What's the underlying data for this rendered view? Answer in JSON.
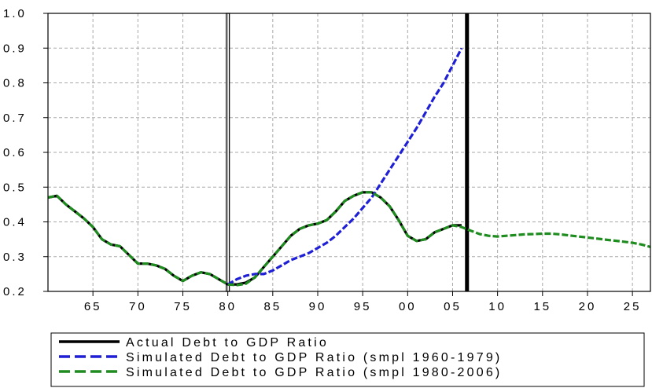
{
  "chart_data": {
    "type": "line",
    "title": "",
    "xlabel": "",
    "ylabel": "",
    "xlim": [
      1960,
      2027
    ],
    "ylim": [
      0.2,
      1.0
    ],
    "grid": true,
    "legend_position": "bottom",
    "x_tick_labels": [
      "65",
      "70",
      "75",
      "80",
      "85",
      "90",
      "95",
      "00",
      "05",
      "10",
      "15",
      "20",
      "25"
    ],
    "x_tick_values": [
      1965,
      1970,
      1975,
      1980,
      1985,
      1990,
      1995,
      2000,
      2005,
      2010,
      2015,
      2020,
      2025
    ],
    "y_tick_labels": [
      "0.2",
      "0.3",
      "0.4",
      "0.5",
      "0.6",
      "0.7",
      "0.8",
      "0.9",
      "1.0"
    ],
    "y_tick_values": [
      0.2,
      0.3,
      0.4,
      0.5,
      0.6,
      0.7,
      0.8,
      0.9,
      1.0
    ],
    "vertical_markers": [
      1980,
      2006.6
    ],
    "series": [
      {
        "name": "Actual Debt to GDP Ratio",
        "color": "#000000",
        "style": "solid",
        "x": [
          1960,
          1961,
          1962,
          1963,
          1964,
          1965,
          1966,
          1967,
          1968,
          1969,
          1970,
          1971,
          1972,
          1973,
          1974,
          1975,
          1976,
          1977,
          1978,
          1979,
          1980,
          1981,
          1982,
          1983,
          1984,
          1985,
          1986,
          1987,
          1988,
          1989,
          1990,
          1991,
          1992,
          1993,
          1994,
          1995,
          1996,
          1997,
          1998,
          1999,
          2000,
          2001,
          2002,
          2003,
          2004,
          2005,
          2006
        ],
        "values": [
          0.47,
          0.475,
          0.45,
          0.43,
          0.41,
          0.385,
          0.35,
          0.335,
          0.33,
          0.305,
          0.28,
          0.28,
          0.275,
          0.265,
          0.245,
          0.23,
          0.245,
          0.255,
          0.25,
          0.235,
          0.22,
          0.22,
          0.225,
          0.24,
          0.27,
          0.3,
          0.33,
          0.36,
          0.38,
          0.39,
          0.395,
          0.405,
          0.43,
          0.46,
          0.475,
          0.485,
          0.485,
          0.47,
          0.445,
          0.405,
          0.36,
          0.345,
          0.35,
          0.37,
          0.38,
          0.39,
          0.39
        ]
      },
      {
        "name": "Simulated Debt to GDP Ratio (smpl 1960-1979)",
        "color": "#1f1fd6",
        "style": "dashed",
        "x": [
          1980,
          1981,
          1982,
          1983,
          1984,
          1985,
          1986,
          1987,
          1988,
          1989,
          1990,
          1991,
          1992,
          1993,
          1994,
          1995,
          1996,
          1997,
          1998,
          1999,
          2000,
          2001,
          2002,
          2003,
          2004,
          2005,
          2006
        ],
        "values": [
          0.22,
          0.235,
          0.245,
          0.25,
          0.25,
          0.26,
          0.275,
          0.29,
          0.3,
          0.31,
          0.325,
          0.34,
          0.36,
          0.385,
          0.41,
          0.44,
          0.47,
          0.51,
          0.55,
          0.59,
          0.63,
          0.67,
          0.715,
          0.76,
          0.8,
          0.85,
          0.9
        ]
      },
      {
        "name": "Simulated Debt to GDP Ratio (smpl 1980-2006)",
        "color": "#1e8c1e",
        "style": "dashed",
        "x": [
          1960,
          1961,
          1962,
          1963,
          1964,
          1965,
          1966,
          1967,
          1968,
          1969,
          1970,
          1971,
          1972,
          1973,
          1974,
          1975,
          1976,
          1977,
          1978,
          1979,
          1980,
          1981,
          1982,
          1983,
          1984,
          1985,
          1986,
          1987,
          1988,
          1989,
          1990,
          1991,
          1992,
          1993,
          1994,
          1995,
          1996,
          1997,
          1998,
          1999,
          2000,
          2001,
          2002,
          2003,
          2004,
          2005,
          2006,
          2007,
          2008,
          2009,
          2010,
          2011,
          2012,
          2013,
          2014,
          2015,
          2016,
          2017,
          2018,
          2019,
          2020,
          2021,
          2022,
          2023,
          2024,
          2025,
          2026,
          2027
        ],
        "values": [
          0.47,
          0.475,
          0.45,
          0.43,
          0.41,
          0.385,
          0.35,
          0.335,
          0.33,
          0.305,
          0.28,
          0.28,
          0.275,
          0.265,
          0.245,
          0.23,
          0.245,
          0.255,
          0.25,
          0.235,
          0.22,
          0.218,
          0.222,
          0.24,
          0.27,
          0.3,
          0.33,
          0.36,
          0.38,
          0.39,
          0.395,
          0.405,
          0.43,
          0.46,
          0.475,
          0.485,
          0.485,
          0.47,
          0.445,
          0.405,
          0.36,
          0.345,
          0.35,
          0.37,
          0.38,
          0.39,
          0.385,
          0.375,
          0.365,
          0.36,
          0.358,
          0.36,
          0.362,
          0.364,
          0.365,
          0.366,
          0.366,
          0.364,
          0.361,
          0.358,
          0.355,
          0.352,
          0.349,
          0.346,
          0.343,
          0.34,
          0.335,
          0.328
        ]
      }
    ]
  }
}
